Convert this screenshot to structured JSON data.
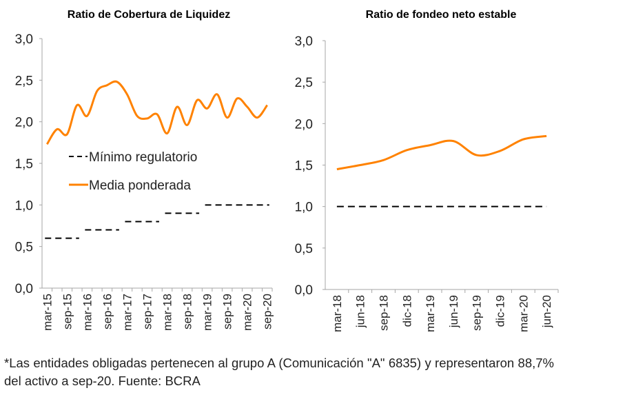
{
  "colors": {
    "media": "#FF8200",
    "minimo": "#000000",
    "axis": "#A6A6A6"
  },
  "chart_data": [
    {
      "type": "line",
      "title": "Ratio de Cobertura de Liquidez",
      "ylim": [
        0,
        3
      ],
      "yticks": [
        "0,0",
        "0,5",
        "1,0",
        "1,5",
        "2,0",
        "2,5",
        "3,0"
      ],
      "categories": [
        "mar-15",
        "jun-15",
        "sep-15",
        "dic-15",
        "mar-16",
        "jun-16",
        "sep-16",
        "dic-16",
        "mar-17",
        "jun-17",
        "sep-17",
        "dic-17",
        "mar-18",
        "jun-18",
        "sep-18",
        "dic-18",
        "mar-19",
        "jun-19",
        "sep-19",
        "dic-19",
        "mar-20",
        "jun-20",
        "sep-20"
      ],
      "xticklabels": [
        "mar-15",
        "sep-15",
        "mar-16",
        "sep-16",
        "mar-17",
        "sep-17",
        "mar-18",
        "sep-18",
        "mar-19",
        "sep-19",
        "mar-20",
        "sep-20"
      ],
      "legend": "inside-center",
      "series": [
        {
          "name": "Mínimo regulatorio",
          "style": "dashed",
          "values": [
            0.6,
            0.6,
            0.6,
            0.6,
            0.7,
            0.7,
            0.7,
            0.7,
            0.8,
            0.8,
            0.8,
            0.8,
            0.9,
            0.9,
            0.9,
            0.9,
            1.0,
            1.0,
            1.0,
            1.0,
            1.0,
            1.0,
            1.0
          ]
        },
        {
          "name": "Media ponderada",
          "style": "solid",
          "values": [
            1.73,
            1.91,
            1.85,
            2.2,
            2.07,
            2.37,
            2.44,
            2.48,
            2.33,
            2.07,
            2.04,
            2.09,
            1.86,
            2.18,
            1.96,
            2.26,
            2.16,
            2.33,
            2.05,
            2.28,
            2.18,
            2.05,
            2.2
          ]
        }
      ]
    },
    {
      "type": "line",
      "title": "Ratio de fondeo neto estable",
      "ylim": [
        0,
        3
      ],
      "yticks": [
        "0,0",
        "0,5",
        "1,0",
        "1,5",
        "2,0",
        "2,5",
        "3,0"
      ],
      "categories": [
        "mar-18",
        "jun-18",
        "sep-18",
        "dic-18",
        "mar-19",
        "jun-19",
        "sep-19",
        "dic-19",
        "mar-20",
        "jun-20"
      ],
      "xticklabels": [
        "mar-18",
        "jun-18",
        "sep-18",
        "dic-18",
        "mar-19",
        "jun-19",
        "sep-19",
        "dic-19",
        "mar-20",
        "jun-20"
      ],
      "series": [
        {
          "style": "dashed",
          "values": [
            1,
            1,
            1,
            1,
            1,
            1,
            1,
            1,
            1,
            1
          ]
        },
        {
          "style": "solid",
          "values": [
            1.45,
            1.5,
            1.56,
            1.68,
            1.74,
            1.79,
            1.62,
            1.67,
            1.81,
            1.85
          ]
        }
      ]
    }
  ],
  "footnote": "*Las entidades obligadas pertenecen al grupo A (Comunicación \"A\" 6835) y representaron 88,7% del activo a sep-20. Fuente: BCRA"
}
